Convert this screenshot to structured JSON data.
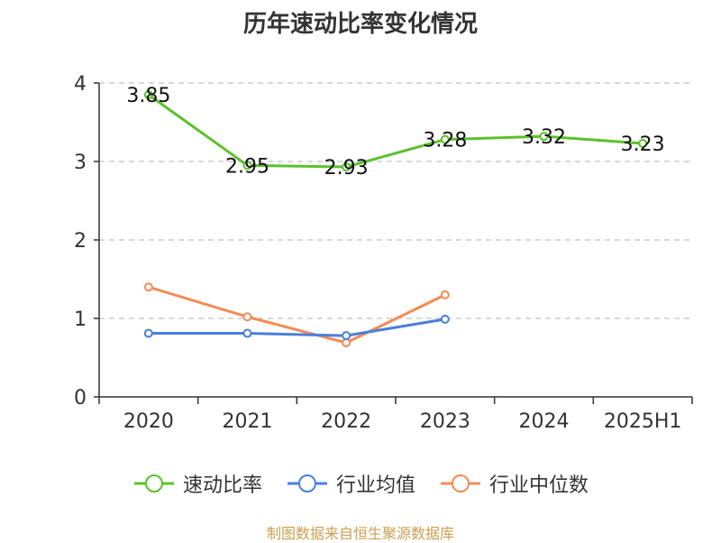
{
  "chart_data": {
    "type": "line",
    "title": "历年速动比率变化情况",
    "categories": [
      "2020",
      "2021",
      "2022",
      "2023",
      "2024",
      "2025H1"
    ],
    "ylim": [
      0,
      4
    ],
    "yticks": [
      0,
      1,
      2,
      3,
      4
    ],
    "grid": true,
    "legend_position": "bottom",
    "series": [
      {
        "name": "速动比率",
        "color": "#5cc12a",
        "values": [
          3.85,
          2.95,
          2.93,
          3.28,
          3.32,
          3.23
        ],
        "labels": [
          "3.85",
          "2.95",
          "2.93",
          "3.28",
          "3.32",
          "3.23"
        ]
      },
      {
        "name": "行业均值",
        "color": "#4a7fdc",
        "values": [
          0.81,
          0.81,
          0.78,
          0.99,
          null,
          null
        ]
      },
      {
        "name": "行业中位数",
        "color": "#f28c57",
        "values": [
          1.4,
          1.02,
          0.69,
          1.3,
          null,
          null
        ]
      }
    ]
  },
  "footer": {
    "source": "制图数据来自恒生聚源数据库"
  }
}
